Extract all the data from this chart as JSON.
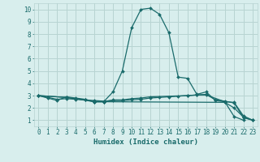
{
  "xlabel": "Humidex (Indice chaleur)",
  "xlim": [
    -0.5,
    23.5
  ],
  "ylim": [
    0.5,
    10.5
  ],
  "xticks": [
    0,
    1,
    2,
    3,
    4,
    5,
    6,
    7,
    8,
    9,
    10,
    11,
    12,
    13,
    14,
    15,
    16,
    17,
    18,
    19,
    20,
    21,
    22,
    23
  ],
  "yticks": [
    1,
    2,
    3,
    4,
    5,
    6,
    7,
    8,
    9,
    10
  ],
  "background_color": "#d8eeed",
  "grid_color": "#b8d4d2",
  "line_color": "#1a6b6b",
  "series": [
    {
      "x": [
        0,
        1,
        2,
        3,
        4,
        5,
        6,
        7,
        8,
        9,
        10,
        11,
        12,
        13,
        14,
        15,
        16,
        17,
        18,
        19,
        20,
        21,
        22
      ],
      "y": [
        3.0,
        2.8,
        2.6,
        2.9,
        2.8,
        2.7,
        2.5,
        2.5,
        3.3,
        5.0,
        8.5,
        10.0,
        10.1,
        9.6,
        8.1,
        4.5,
        4.4,
        3.1,
        3.3,
        2.6,
        2.5,
        1.3,
        1.0
      ]
    },
    {
      "x": [
        0,
        1,
        2,
        3,
        4,
        5,
        6,
        7,
        8,
        9,
        10,
        11,
        12,
        13,
        14,
        15,
        16,
        17,
        18,
        19,
        20,
        21,
        22,
        23
      ],
      "y": [
        3.0,
        2.85,
        2.7,
        2.75,
        2.7,
        2.65,
        2.6,
        2.55,
        2.6,
        2.6,
        2.65,
        2.7,
        2.8,
        2.85,
        2.9,
        2.95,
        3.0,
        3.05,
        3.1,
        2.65,
        2.55,
        2.4,
        1.2,
        1.0
      ]
    },
    {
      "x": [
        0,
        3,
        6,
        7,
        8,
        9,
        10,
        11,
        12,
        16,
        17,
        18,
        20,
        21,
        22,
        23
      ],
      "y": [
        3.0,
        2.85,
        2.5,
        2.5,
        2.65,
        2.65,
        2.75,
        2.8,
        2.9,
        3.0,
        3.05,
        3.05,
        2.5,
        2.45,
        1.35,
        1.0
      ]
    },
    {
      "x": [
        0,
        3,
        4,
        5,
        6,
        7,
        20,
        21,
        22,
        23
      ],
      "y": [
        3.0,
        2.85,
        2.75,
        2.65,
        2.5,
        2.5,
        2.45,
        2.0,
        1.25,
        1.0
      ]
    }
  ]
}
